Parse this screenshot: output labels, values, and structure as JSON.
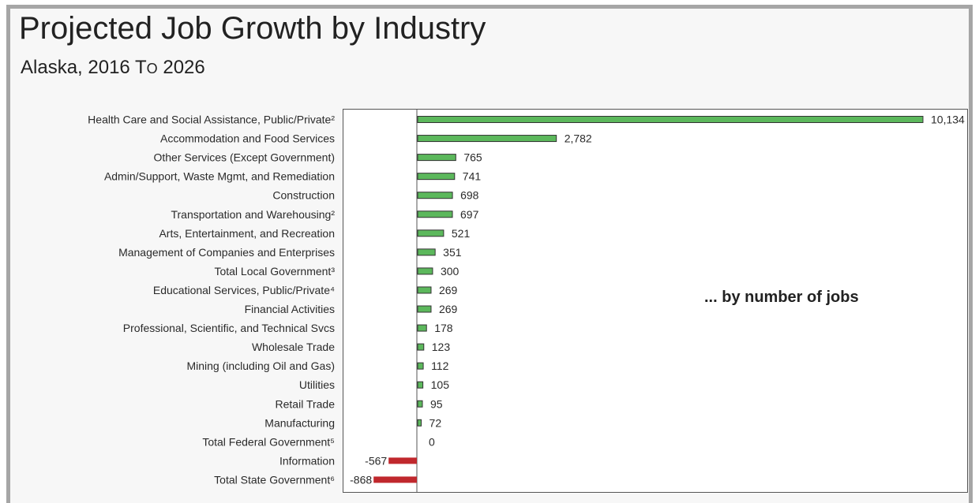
{
  "chart_data": {
    "type": "bar",
    "orientation": "horizontal",
    "title": "Projected Job Growth by Industry",
    "subtitle": "Alaska, 2016 to 2026",
    "annotation": "... by number of jobs",
    "xlabel": "",
    "ylabel": "",
    "grid": false,
    "legend": "none",
    "xlim": [
      -900,
      10300
    ],
    "colors": {
      "positive": "#5cb85c",
      "negative": "#c0282d",
      "outline": "#333333"
    },
    "categories": [
      "Health Care and Social Assistance, Public/Private²",
      "Accommodation and Food Services",
      "Other Services (Except Government)",
      "Admin/Support, Waste Mgmt, and Remediation",
      "Construction",
      "Transportation and Warehousing²",
      "Arts, Entertainment, and Recreation",
      "Management of Companies and Enterprises",
      "Total Local Government³",
      "Educational Services, Public/Private⁴",
      "Financial Activities",
      "Professional, Scientific, and Technical Svcs",
      "Wholesale Trade",
      "Mining (including Oil and Gas)",
      "Utilities",
      "Retail Trade",
      "Manufacturing",
      "Total Federal Government⁵",
      "Information",
      "Total State Government⁶"
    ],
    "values": [
      10134,
      2782,
      765,
      741,
      698,
      697,
      521,
      351,
      300,
      269,
      269,
      178,
      123,
      112,
      105,
      95,
      72,
      0,
      -567,
      -868
    ],
    "value_labels": [
      "10,134",
      "2,782",
      "765",
      "741",
      "698",
      "697",
      "521",
      "351",
      "300",
      "269",
      "269",
      "178",
      "123",
      "112",
      "105",
      "95",
      "72",
      "0",
      "-567",
      "-868"
    ]
  }
}
